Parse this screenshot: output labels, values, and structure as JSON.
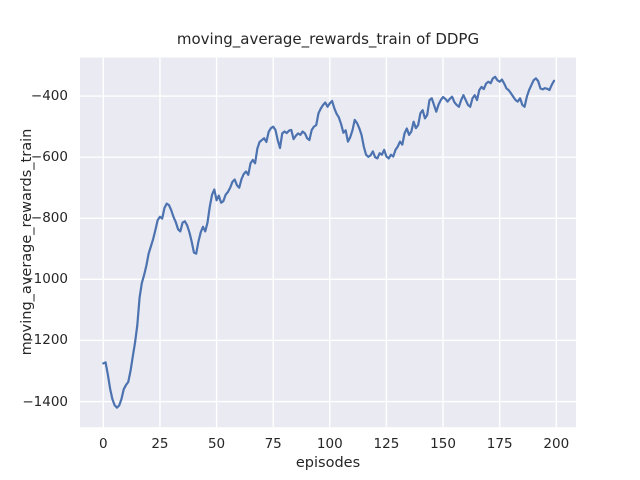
{
  "figure_title": "moving_average_rewards_train of DDPG",
  "chart_data": {
    "type": "line",
    "title": "moving_average_rewards_train of DDPG",
    "xlabel": "episodes",
    "ylabel": "moving_average_rewards_train",
    "grid": true,
    "legend": false,
    "plot_bg": "#eaeaf2",
    "grid_color": "#ffffff",
    "text_color": "#262626",
    "xlim": [
      -10.3,
      208.7
    ],
    "ylim": [
      -1484,
      -274
    ],
    "x_ticks": [
      {
        "v": 0,
        "label": "0"
      },
      {
        "v": 25,
        "label": "25"
      },
      {
        "v": 50,
        "label": "50"
      },
      {
        "v": 75,
        "label": "75"
      },
      {
        "v": 100,
        "label": "100"
      },
      {
        "v": 125,
        "label": "125"
      },
      {
        "v": 150,
        "label": "150"
      },
      {
        "v": 175,
        "label": "175"
      },
      {
        "v": 200,
        "label": "200"
      }
    ],
    "y_ticks": [
      {
        "v": -400,
        "label": "−400"
      },
      {
        "v": -600,
        "label": "−600"
      },
      {
        "v": -800,
        "label": "−800"
      },
      {
        "v": -1000,
        "label": "−1000"
      },
      {
        "v": -1200,
        "label": "−1200"
      },
      {
        "v": -1400,
        "label": "−1400"
      }
    ],
    "series": [
      {
        "name": "moving_average_rewards_train",
        "color": "#4c72b0",
        "x_start": 0,
        "values": [
          -1275,
          -1272,
          -1312,
          -1358,
          -1392,
          -1412,
          -1420,
          -1413,
          -1392,
          -1360,
          -1346,
          -1336,
          -1300,
          -1253,
          -1207,
          -1150,
          -1060,
          -1012,
          -986,
          -955,
          -916,
          -892,
          -868,
          -838,
          -806,
          -795,
          -801,
          -766,
          -752,
          -757,
          -774,
          -796,
          -813,
          -836,
          -843,
          -814,
          -810,
          -823,
          -846,
          -876,
          -912,
          -916,
          -876,
          -846,
          -828,
          -843,
          -814,
          -762,
          -723,
          -706,
          -741,
          -726,
          -749,
          -744,
          -723,
          -714,
          -700,
          -681,
          -673,
          -692,
          -700,
          -672,
          -655,
          -647,
          -658,
          -620,
          -609,
          -620,
          -572,
          -550,
          -544,
          -538,
          -550,
          -517,
          -505,
          -500,
          -511,
          -544,
          -570,
          -522,
          -516,
          -521,
          -513,
          -511,
          -541,
          -530,
          -522,
          -527,
          -516,
          -522,
          -538,
          -544,
          -511,
          -500,
          -495,
          -456,
          -441,
          -429,
          -421,
          -435,
          -424,
          -416,
          -440,
          -458,
          -470,
          -492,
          -520,
          -512,
          -549,
          -535,
          -512,
          -478,
          -488,
          -505,
          -527,
          -565,
          -592,
          -599,
          -594,
          -581,
          -600,
          -604,
          -587,
          -592,
          -576,
          -598,
          -604,
          -592,
          -598,
          -576,
          -565,
          -549,
          -559,
          -522,
          -506,
          -527,
          -516,
          -484,
          -505,
          -495,
          -456,
          -446,
          -473,
          -462,
          -413,
          -407,
          -429,
          -451,
          -428,
          -413,
          -403,
          -409,
          -418,
          -409,
          -402,
          -420,
          -429,
          -435,
          -413,
          -397,
          -413,
          -429,
          -435,
          -407,
          -397,
          -413,
          -380,
          -370,
          -377,
          -359,
          -353,
          -358,
          -342,
          -337,
          -348,
          -353,
          -346,
          -359,
          -375,
          -381,
          -391,
          -402,
          -413,
          -418,
          -407,
          -429,
          -435,
          -402,
          -380,
          -364,
          -348,
          -342,
          -351,
          -375,
          -378,
          -374,
          -376,
          -380,
          -363,
          -350
        ]
      }
    ]
  }
}
